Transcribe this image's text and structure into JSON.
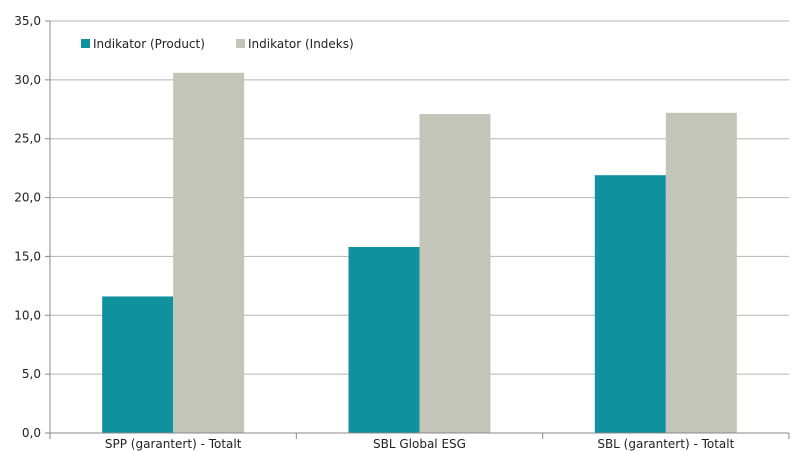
{
  "chart_data": {
    "type": "bar",
    "title": "",
    "xlabel": "",
    "ylabel": "",
    "categories": [
      "SPP (garantert) - Totalt",
      "SBL Global ESG",
      "SBL (garantert) - Totalt"
    ],
    "series": [
      {
        "name": "Indikator (Product)",
        "color": "#0f929e",
        "values": [
          11.6,
          15.8,
          21.9
        ]
      },
      {
        "name": "Indikator (Indeks)",
        "color": "#c3c5b8",
        "values": [
          30.6,
          27.1,
          27.2
        ]
      }
    ],
    "ylim": [
      0,
      35
    ],
    "yticks": [
      "0,0",
      "5,0",
      "10,0",
      "15,0",
      "20,0",
      "25,0",
      "30,0",
      "35,0"
    ],
    "grid": true,
    "legend_position": "top-left"
  }
}
